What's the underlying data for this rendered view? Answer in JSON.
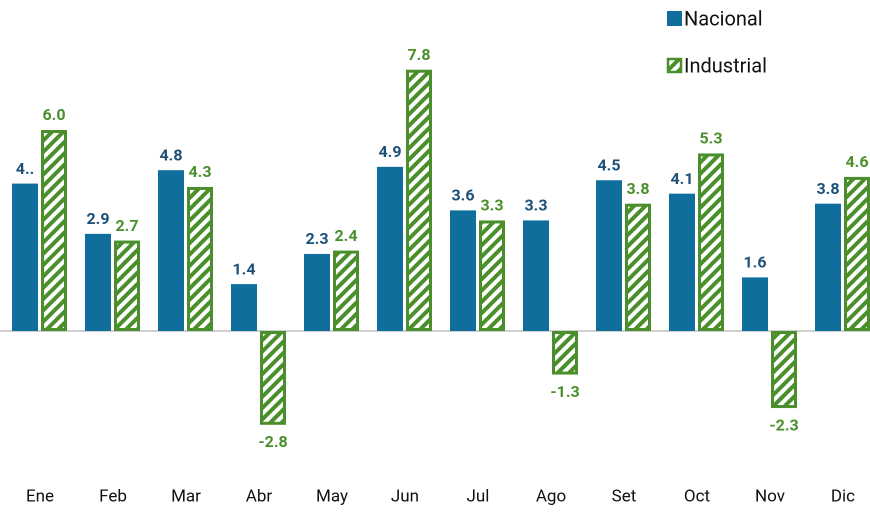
{
  "chart_data": {
    "type": "bar",
    "categories": [
      "Ene",
      "Feb",
      "Mar",
      "Abr",
      "May",
      "Jun",
      "Jul",
      "Ago",
      "Set",
      "Oct",
      "Nov",
      "Dic"
    ],
    "series": [
      {
        "name": "Nacional",
        "color": "#0f6e9b",
        "label_color": "#1c5077",
        "values": [
          4.4,
          2.9,
          4.8,
          1.4,
          2.3,
          4.9,
          3.6,
          3.3,
          4.5,
          4.1,
          1.6,
          3.8
        ],
        "value_labels": [
          "4..",
          "2.9",
          "4.8",
          "1.4",
          "2.3",
          "4.9",
          "3.6",
          "3.3",
          "4.5",
          "4.1",
          "1.6",
          "3.8"
        ]
      },
      {
        "name": "Industrial",
        "color": "#4b8f2c",
        "label_color": "#4b8f2c",
        "hatch": true,
        "values": [
          6.0,
          2.7,
          4.3,
          -2.8,
          2.4,
          7.8,
          3.3,
          -1.3,
          3.8,
          5.3,
          -2.3,
          4.6
        ],
        "value_labels": [
          "6.0",
          "2.7",
          "4.3",
          "-2.8",
          "2.4",
          "7.8",
          "3.3",
          "-1.3",
          "3.8",
          "5.3",
          "-2.3",
          "4.6"
        ]
      }
    ],
    "ylim": [
      -4.5,
      9.5
    ],
    "legend": "top-right"
  }
}
